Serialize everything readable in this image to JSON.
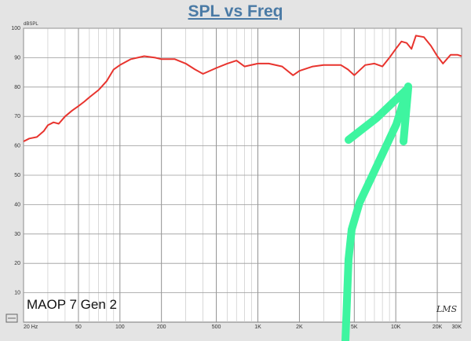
{
  "chart_data": {
    "type": "line",
    "title": "SPL vs Freq",
    "ylabel": "dBSPL",
    "xscale": "log",
    "xlim": [
      20,
      30000
    ],
    "ylim": [
      0,
      100
    ],
    "grid": true,
    "yticks": [
      10,
      20,
      30,
      40,
      50,
      60,
      70,
      80,
      90,
      100
    ],
    "xtick_labels": [
      {
        "value": 20,
        "label": "20 Hz"
      },
      {
        "value": 50,
        "label": "50"
      },
      {
        "value": 100,
        "label": "100"
      },
      {
        "value": 200,
        "label": "200"
      },
      {
        "value": 500,
        "label": "500"
      },
      {
        "value": 1000,
        "label": "1K"
      },
      {
        "value": 2000,
        "label": "2K"
      },
      {
        "value": 5000,
        "label": "5K"
      },
      {
        "value": 10000,
        "label": "10K"
      },
      {
        "value": 20000,
        "label": "20K"
      },
      {
        "value": 30000,
        "label": "30K"
      }
    ],
    "annotation": "MAOP 7 Gen 2",
    "logo": "LMS",
    "series": [
      {
        "color": "#e8342e",
        "x": [
          20,
          22,
          25,
          28,
          30,
          33,
          36,
          40,
          45,
          50,
          55,
          60,
          70,
          80,
          90,
          100,
          120,
          150,
          180,
          200,
          250,
          300,
          350,
          400,
          500,
          600,
          700,
          800,
          1000,
          1200,
          1500,
          1800,
          2000,
          2500,
          3000,
          3500,
          4000,
          4500,
          5000,
          6000,
          7000,
          8000,
          9000,
          10000,
          11000,
          12000,
          13000,
          14000,
          16000,
          18000,
          20000,
          22000,
          25000,
          28000,
          30000
        ],
        "y": [
          61.5,
          62.5,
          63,
          65,
          67,
          68,
          67.5,
          70,
          72,
          73.5,
          75,
          76.5,
          79,
          82,
          86,
          87.5,
          89.5,
          90.5,
          90,
          89.5,
          89.5,
          88,
          86,
          84.5,
          86.5,
          88,
          89,
          87,
          88,
          88,
          87,
          84,
          85.5,
          87,
          87.5,
          87.5,
          87.5,
          86,
          84,
          87.5,
          88,
          87,
          90,
          93,
          95.5,
          95,
          93,
          97.5,
          97,
          94,
          90.5,
          88,
          91,
          91,
          90.5
        ]
      }
    ]
  },
  "arrow_color": "#3ef5a0"
}
